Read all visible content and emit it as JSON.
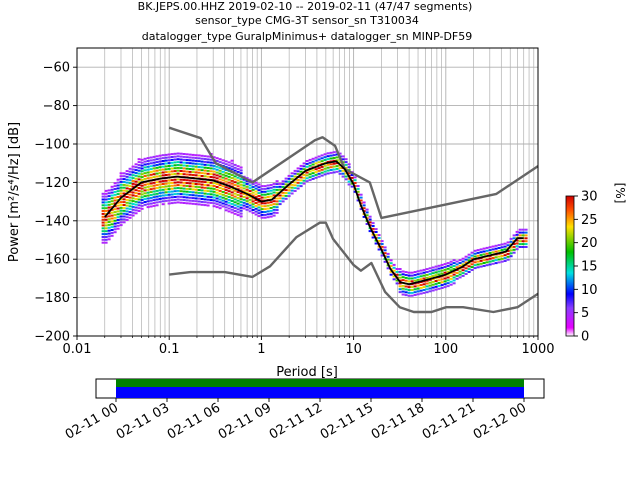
{
  "chart_data": {
    "type": "heatmap",
    "title_lines": [
      "BK.JEPS.00.HHZ   2019-02-10 -- 2019-02-11  (47/47 segments)",
      "sensor_type CMG-3T sensor_sn T310034",
      "datalogger_type GuralpMinimus+ datalogger_sn MINP-DF59"
    ],
    "xlabel": "Period [s]",
    "ylabel": "Power [m²/s⁴/Hz] [dB]",
    "x_scale": "log",
    "xlim": [
      0.01,
      1000
    ],
    "ylim": [
      -200,
      -50
    ],
    "x_ticks": [
      {
        "value": 0.01,
        "label": "0.01"
      },
      {
        "value": 0.1,
        "label": "0.1"
      },
      {
        "value": 1,
        "label": "1"
      },
      {
        "value": 10,
        "label": "10"
      },
      {
        "value": 100,
        "label": "100"
      },
      {
        "value": 1000,
        "label": "1000"
      }
    ],
    "y_ticks": [
      -60,
      -80,
      -100,
      -120,
      -140,
      -160,
      -180,
      -200
    ],
    "grid": true,
    "colorbar": {
      "label": "[%]",
      "range": [
        0,
        30
      ],
      "ticks": [
        0,
        5,
        10,
        15,
        20,
        25,
        30
      ]
    },
    "noise_model_high": [
      [
        0.1,
        -91.5
      ],
      [
        0.22,
        -97
      ],
      [
        0.32,
        -110
      ],
      [
        0.8,
        -120
      ],
      [
        3.8,
        -98
      ],
      [
        4.6,
        -96.5
      ],
      [
        6.3,
        -101
      ],
      [
        8,
        -113
      ],
      [
        15,
        -120
      ],
      [
        20,
        -138.5
      ],
      [
        354,
        -126
      ],
      [
        1000,
        -111.5
      ]
    ],
    "noise_model_low": [
      [
        0.1,
        -168
      ],
      [
        0.17,
        -166.7
      ],
      [
        0.4,
        -166.7
      ],
      [
        0.8,
        -169.2
      ],
      [
        1.24,
        -163.7
      ],
      [
        2.4,
        -148.5
      ],
      [
        4.3,
        -141
      ],
      [
        5,
        -141
      ],
      [
        6,
        -149.5
      ],
      [
        10,
        -163
      ],
      [
        12,
        -166
      ],
      [
        15.6,
        -162
      ],
      [
        21.9,
        -177
      ],
      [
        31.6,
        -185
      ],
      [
        45,
        -187.5
      ],
      [
        70,
        -187.5
      ],
      [
        101,
        -185
      ],
      [
        154,
        -185
      ],
      [
        328,
        -187.5
      ],
      [
        600,
        -185
      ],
      [
        1000,
        -178
      ]
    ],
    "mode_curve": [
      [
        0.02,
        -138
      ],
      [
        0.03,
        -128
      ],
      [
        0.05,
        -120
      ],
      [
        0.08,
        -118
      ],
      [
        0.12,
        -117
      ],
      [
        0.2,
        -118
      ],
      [
        0.3,
        -119
      ],
      [
        0.45,
        -122
      ],
      [
        0.7,
        -126
      ],
      [
        1.0,
        -130
      ],
      [
        1.3,
        -129
      ],
      [
        2.0,
        -121
      ],
      [
        3.0,
        -114
      ],
      [
        5.0,
        -110
      ],
      [
        6.5,
        -109
      ],
      [
        8.0,
        -113
      ],
      [
        10.0,
        -121
      ],
      [
        12.0,
        -132
      ],
      [
        15.0,
        -143
      ],
      [
        20.0,
        -155
      ],
      [
        25.0,
        -165
      ],
      [
        32.0,
        -172
      ],
      [
        40.0,
        -173
      ],
      [
        60.0,
        -171
      ],
      [
        100.0,
        -168
      ],
      [
        150.0,
        -164
      ],
      [
        200.0,
        -160
      ],
      [
        300.0,
        -158
      ],
      [
        450.0,
        -156
      ],
      [
        600.0,
        -149
      ],
      [
        700.0,
        -149
      ]
    ],
    "time_axis": {
      "tick_labels": [
        "02-11 00",
        "02-11 03",
        "02-11 06",
        "02-11 09",
        "02-11 12",
        "02-11 15",
        "02-11 18",
        "02-11 21",
        "02-12 00"
      ],
      "segments": 47
    }
  }
}
